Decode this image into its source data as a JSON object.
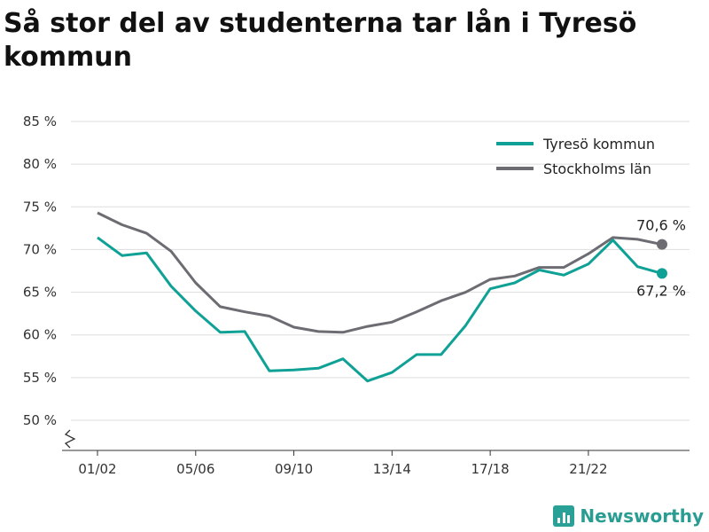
{
  "title": "Så stor del av studenterna tar lån i Tyresö kommun",
  "brand": {
    "name": "Newsworthy"
  },
  "colors": {
    "tyreso": "#10a196",
    "stockholm": "#6d6c73",
    "grid": "#dddddd"
  },
  "chart_data": {
    "type": "line",
    "title": "Så stor del av studenterna tar lån i Tyresö kommun",
    "xlabel": "",
    "ylabel": "",
    "ylim": [
      50,
      85
    ],
    "y_ticks": [
      "50 %",
      "55 %",
      "60 %",
      "65 %",
      "70 %",
      "75 %",
      "80 %",
      "85 %"
    ],
    "x_tick_labels": [
      "01/02",
      "05/06",
      "09/10",
      "13/14",
      "17/18",
      "21/22"
    ],
    "x_tick_indices": [
      0,
      4,
      8,
      12,
      16,
      20
    ],
    "grid": true,
    "axis_break": true,
    "legend_position": "top-right",
    "series": [
      {
        "name": "Tyresö kommun",
        "color": "#10a196",
        "values": [
          71.4,
          69.3,
          69.6,
          65.7,
          62.8,
          60.3,
          60.4,
          55.8,
          55.9,
          56.1,
          57.2,
          54.6,
          55.6,
          57.7,
          57.7,
          61.1,
          65.4,
          66.1,
          67.6,
          67.0,
          68.3,
          71.1,
          68.0,
          67.2
        ],
        "end_label": "67,2 %"
      },
      {
        "name": "Stockholms län",
        "color": "#6d6c73",
        "values": [
          74.3,
          72.9,
          71.9,
          69.8,
          66.1,
          63.3,
          62.7,
          62.2,
          60.9,
          60.4,
          60.3,
          61.0,
          61.5,
          62.7,
          64.0,
          65.0,
          66.5,
          66.9,
          67.9,
          67.9,
          69.5,
          71.4,
          71.2,
          70.6
        ],
        "end_label": "70,6 %"
      }
    ]
  }
}
